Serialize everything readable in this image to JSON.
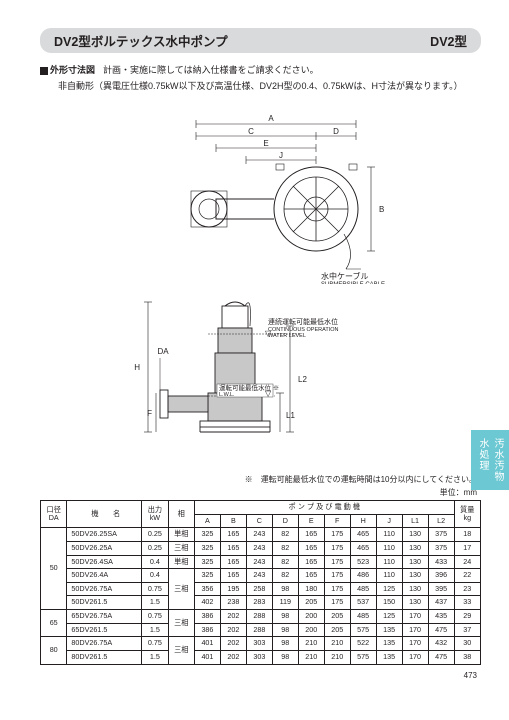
{
  "title": {
    "main": "DV2型ボルテックス水中ポンプ",
    "model": "DV2型"
  },
  "subtitle1_heading": "外形寸法図",
  "subtitle1_text": "計画・実施に際しては納入仕様書をご請求ください。",
  "subtitle2": "非自動形（異電圧仕様0.75kW以下及び高温仕様、DV2H型の0.4、0.75kWは、H寸法が異なります。）",
  "diagram1": {
    "label_A": "A",
    "label_B": "B",
    "label_C": "C",
    "label_D": "D",
    "label_E": "E",
    "label_J": "J",
    "cable_jp": "水中ケーブル",
    "cable_en": "SUBMERSIBLE CABLE"
  },
  "diagram2": {
    "label_DA": "DA",
    "label_F": "F",
    "label_H": "H",
    "label_L1": "L1",
    "label_L2": "L2",
    "cwl_jp": "連続運転可能最低水位",
    "cwl_en1": "CONTINUOUS OPERATION",
    "cwl_en2": "WATER LEVEL",
    "lwl_jp": "運転可能最低水位 ※",
    "lwl_en": "L.W.L."
  },
  "side_tab": "汚水汚物\n水処理",
  "footnote": "※　運転可能最低水位での運転時間は10分以内にしてください。",
  "unit_label": "単位：mm",
  "table": {
    "headers": {
      "da": "口径\nDA",
      "name": "機　　名",
      "kw": "出力\nkW",
      "phase": "相",
      "pump_group": "ポ ン プ 及 び 電 動 機",
      "A": "A",
      "B": "B",
      "C": "C",
      "D": "D",
      "E": "E",
      "F": "F",
      "H": "H",
      "J": "J",
      "L1": "L1",
      "L2": "L2",
      "wt": "質量\nkg"
    },
    "da_groups": [
      {
        "da": "50",
        "rows": [
          "r0",
          "r1",
          "r2",
          "r3",
          "r4",
          "r5"
        ]
      },
      {
        "da": "65",
        "rows": [
          "r6",
          "r7"
        ]
      },
      {
        "da": "80",
        "rows": [
          "r8",
          "r9"
        ]
      }
    ],
    "phase_groups": [
      {
        "phase": "単相",
        "span": 1,
        "start": "r0"
      },
      {
        "phase": "三相",
        "span": 1,
        "start": "r1"
      },
      {
        "phase": "単相",
        "span": 1,
        "start": "r2"
      },
      {
        "phase": "三相",
        "span": 3,
        "start": "r3"
      },
      {
        "phase": "三相",
        "span": 2,
        "start": "r6"
      },
      {
        "phase": "三相",
        "span": 2,
        "start": "r8"
      }
    ],
    "rows": {
      "r0": {
        "name": "50DV26.25SA",
        "kw": "0.25",
        "A": "325",
        "B": "165",
        "C": "243",
        "D": "82",
        "E": "165",
        "F": "175",
        "H": "465",
        "J": "110",
        "L1": "130",
        "L2": "375",
        "wt": "18"
      },
      "r1": {
        "name": "50DV26.25A",
        "kw": "0.25",
        "A": "325",
        "B": "165",
        "C": "243",
        "D": "82",
        "E": "165",
        "F": "175",
        "H": "465",
        "J": "110",
        "L1": "130",
        "L2": "375",
        "wt": "17"
      },
      "r2": {
        "name": "50DV26.4SA",
        "kw": "0.4",
        "A": "325",
        "B": "165",
        "C": "243",
        "D": "82",
        "E": "165",
        "F": "175",
        "H": "523",
        "J": "110",
        "L1": "130",
        "L2": "433",
        "wt": "24"
      },
      "r3": {
        "name": "50DV26.4A",
        "kw": "0.4",
        "A": "325",
        "B": "165",
        "C": "243",
        "D": "82",
        "E": "165",
        "F": "175",
        "H": "486",
        "J": "110",
        "L1": "130",
        "L2": "396",
        "wt": "22"
      },
      "r4": {
        "name": "50DV26.75A",
        "kw": "0.75",
        "A": "356",
        "B": "195",
        "C": "258",
        "D": "98",
        "E": "180",
        "F": "175",
        "H": "485",
        "J": "125",
        "L1": "130",
        "L2": "395",
        "wt": "23"
      },
      "r5": {
        "name": "50DV261.5",
        "kw": "1.5",
        "A": "402",
        "B": "238",
        "C": "283",
        "D": "119",
        "E": "205",
        "F": "175",
        "H": "537",
        "J": "150",
        "L1": "130",
        "L2": "437",
        "wt": "33"
      },
      "r6": {
        "name": "65DV26.75A",
        "kw": "0.75",
        "A": "386",
        "B": "202",
        "C": "288",
        "D": "98",
        "E": "200",
        "F": "205",
        "H": "485",
        "J": "125",
        "L1": "170",
        "L2": "435",
        "wt": "29"
      },
      "r7": {
        "name": "65DV261.5",
        "kw": "1.5",
        "A": "386",
        "B": "202",
        "C": "288",
        "D": "98",
        "E": "200",
        "F": "205",
        "H": "575",
        "J": "135",
        "L1": "170",
        "L2": "475",
        "wt": "37"
      },
      "r8": {
        "name": "80DV26.75A",
        "kw": "0.75",
        "A": "401",
        "B": "202",
        "C": "303",
        "D": "98",
        "E": "210",
        "F": "210",
        "H": "522",
        "J": "135",
        "L1": "170",
        "L2": "432",
        "wt": "30"
      },
      "r9": {
        "name": "80DV261.5",
        "kw": "1.5",
        "A": "401",
        "B": "202",
        "C": "303",
        "D": "98",
        "E": "210",
        "F": "210",
        "H": "575",
        "J": "135",
        "L1": "170",
        "L2": "475",
        "wt": "38"
      }
    }
  },
  "page_number": "473"
}
